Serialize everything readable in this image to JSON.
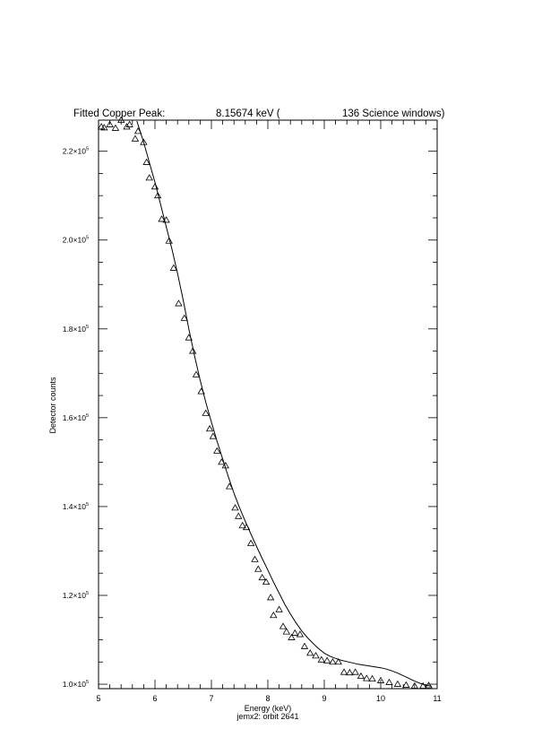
{
  "header": {
    "title": "Fitted Copper Peak:",
    "energy": "8.15674 keV (",
    "windows": "136 Science windows)"
  },
  "footer": {
    "caption": "jemx2: orbit 2641"
  },
  "chart_data": {
    "type": "scatter",
    "xlabel": "Energy (keV)",
    "ylabel": "Detector counts",
    "xlim": [
      5,
      11
    ],
    "ylim": [
      99000,
      227000
    ],
    "x_ticks": [
      "5",
      "6",
      "7",
      "8",
      "9",
      "10",
      "11"
    ],
    "y_ticks": [
      {
        "value": 100000,
        "mantissa": "1.0×10",
        "exp": "5"
      },
      {
        "value": 120000,
        "mantissa": "1.2×10",
        "exp": "5"
      },
      {
        "value": 140000,
        "mantissa": "1.4×10",
        "exp": "5"
      },
      {
        "value": 160000,
        "mantissa": "1.6×10",
        "exp": "5"
      },
      {
        "value": 180000,
        "mantissa": "1.8×10",
        "exp": "5"
      },
      {
        "value": 200000,
        "mantissa": "2.0×10",
        "exp": "5"
      },
      {
        "value": 220000,
        "mantissa": "2.2×10",
        "exp": "5"
      }
    ],
    "x_minor_step": 0.2,
    "y_minor_step": 5000,
    "grid": false,
    "series": [
      {
        "marker": "triangle",
        "x": [
          5.05,
          5.1,
          5.2,
          5.3,
          5.4,
          5.5,
          5.55,
          5.65,
          5.7,
          5.8,
          5.85,
          5.9,
          6.0,
          6.05,
          6.12,
          6.2,
          6.25,
          6.33,
          6.42,
          6.52,
          6.6,
          6.67,
          6.73,
          6.82,
          6.9,
          6.97,
          7.03,
          7.1,
          7.18,
          7.25,
          7.32,
          7.42,
          7.48,
          7.55,
          7.62,
          7.7,
          7.77,
          7.83,
          7.9,
          7.97,
          8.05,
          8.1,
          8.2,
          8.27,
          8.33,
          8.42,
          8.48,
          8.57,
          8.65,
          8.75,
          8.85,
          8.95,
          9.05,
          9.15,
          9.25,
          9.35,
          9.45,
          9.55,
          9.65,
          9.75,
          9.85,
          10.0,
          10.15,
          10.3,
          10.45,
          10.6,
          10.75,
          10.85
        ],
        "y": [
          225500,
          225300,
          226000,
          225200,
          227000,
          225500,
          226000,
          222800,
          224500,
          222000,
          217500,
          214000,
          212000,
          210000,
          204700,
          204500,
          199800,
          193700,
          185700,
          182400,
          178000,
          175000,
          169700,
          165900,
          161000,
          157500,
          155800,
          152500,
          150000,
          149200,
          144500,
          139700,
          137800,
          135700,
          135300,
          131700,
          128100,
          125900,
          124000,
          123000,
          119500,
          115500,
          116800,
          113000,
          111800,
          110500,
          111500,
          111200,
          108500,
          107000,
          106400,
          105500,
          105300,
          105000,
          105000,
          102700,
          102600,
          102700,
          101800,
          101300,
          101200,
          100800,
          100400,
          100000,
          99800,
          99600,
          99600,
          99700
        ]
      },
      {
        "marker": "line",
        "x": [
          5.68,
          5.8,
          5.9,
          6.0,
          6.1,
          6.2,
          6.3,
          6.4,
          6.5,
          6.6,
          6.7,
          6.8,
          6.9,
          7.0,
          7.1,
          7.2,
          7.3,
          7.4,
          7.5,
          7.6,
          7.7,
          7.8,
          7.9,
          8.0,
          8.1,
          8.2,
          8.3,
          8.4,
          8.5,
          8.6,
          8.7,
          8.8,
          8.9,
          9.0,
          9.1,
          9.2,
          9.3,
          9.4,
          9.5,
          9.6,
          9.7,
          9.8,
          9.9,
          10.0,
          10.1,
          10.2,
          10.3,
          10.4,
          10.5,
          10.6,
          10.7,
          10.8,
          10.9
        ],
        "y": [
          226800,
          222000,
          217500,
          213000,
          208000,
          203000,
          198000,
          192500,
          186500,
          180000,
          174000,
          168500,
          163500,
          159000,
          154700,
          150700,
          146700,
          143000,
          139700,
          136700,
          133800,
          131000,
          128300,
          125700,
          123000,
          120500,
          118000,
          115800,
          113800,
          112000,
          110500,
          109200,
          108000,
          107000,
          106300,
          105800,
          105400,
          105100,
          104800,
          104500,
          104300,
          104100,
          103900,
          103700,
          103400,
          103000,
          102500,
          101900,
          101300,
          100700,
          100200,
          99800,
          99500
        ]
      }
    ]
  }
}
